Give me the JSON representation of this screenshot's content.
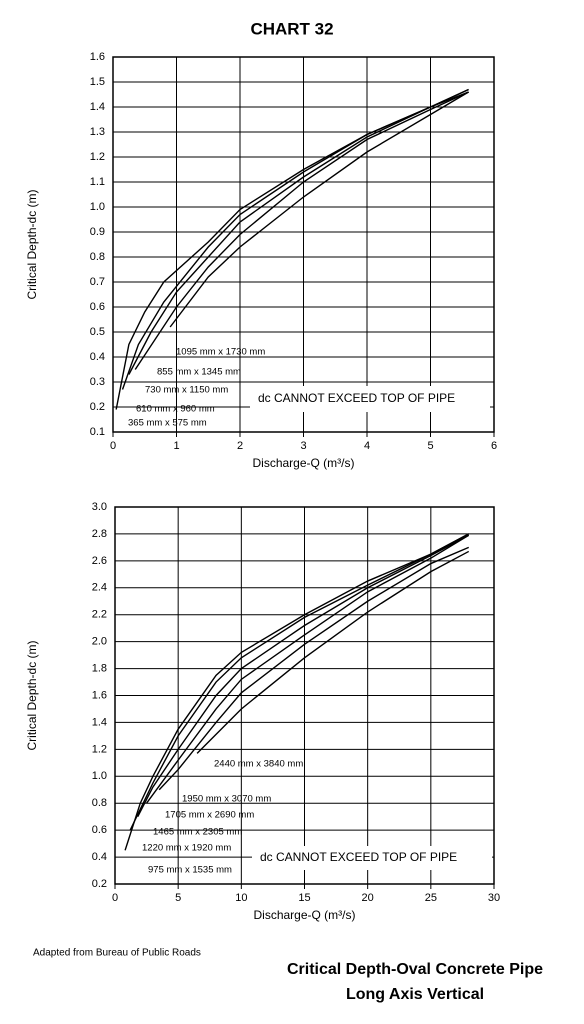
{
  "title": "CHART 32",
  "chart_data": [
    {
      "type": "line",
      "xlabel": "Discharge-Q (m³/s)",
      "ylabel": "Critical Depth-dc (m)",
      "xlim": [
        0,
        6
      ],
      "ylim": [
        0.1,
        1.6
      ],
      "xticks": [
        0,
        1,
        2,
        3,
        4,
        5,
        6
      ],
      "yticks": [
        0.1,
        0.2,
        0.3,
        0.4,
        0.5,
        0.6,
        0.7,
        0.8,
        0.9,
        {
          "value": 1,
          "label": "1.0"
        },
        1.1,
        1.2,
        1.3,
        1.4,
        1.5,
        1.6
      ],
      "grid": true,
      "annotation": "dc CANNOT EXCEED TOP OF PIPE",
      "series": [
        {
          "name": "365 mm x 575 mm",
          "color": "#000000",
          "x": [
            0.05,
            0.25,
            0.5,
            0.8,
            1.5,
            2,
            3,
            4,
            5,
            5.6
          ],
          "values": [
            0.19,
            0.45,
            0.58,
            0.7,
            0.86,
            0.99,
            1.15,
            1.29,
            1.4,
            1.47
          ]
        },
        {
          "name": "610 mm x 960 mm",
          "color": "#000000",
          "x": [
            0.15,
            0.4,
            0.8,
            1.5,
            2,
            3,
            4,
            5,
            5.6
          ],
          "values": [
            0.27,
            0.45,
            0.62,
            0.84,
            0.97,
            1.14,
            1.29,
            1.4,
            1.47
          ]
        },
        {
          "name": "730 mm x 1150 mm",
          "color": "#000000",
          "x": [
            0.25,
            0.6,
            1,
            1.5,
            2,
            3,
            4,
            5,
            5.6
          ],
          "values": [
            0.33,
            0.5,
            0.66,
            0.8,
            0.94,
            1.12,
            1.28,
            1.4,
            1.46
          ]
        },
        {
          "name": "855 mm x 1345 mm",
          "color": "#000000",
          "x": [
            0.35,
            1,
            1.5,
            2,
            3,
            4,
            5,
            5.6
          ],
          "values": [
            0.35,
            0.6,
            0.76,
            0.89,
            1.1,
            1.27,
            1.39,
            1.46
          ]
        },
        {
          "name": "1095 mm x 1730 mm",
          "color": "#000000",
          "x": [
            0.9,
            1.5,
            2,
            3,
            4,
            5,
            5.6
          ],
          "values": [
            0.52,
            0.72,
            0.84,
            1.04,
            1.22,
            1.37,
            1.46
          ]
        }
      ]
    },
    {
      "type": "line",
      "xlabel": "Discharge-Q (m³/s)",
      "ylabel": "Critical Depth-dc (m)",
      "xlim": [
        0,
        30
      ],
      "ylim": [
        0.2,
        3.0
      ],
      "xticks": [
        0,
        5,
        10,
        15,
        20,
        25,
        30
      ],
      "yticks": [
        0.2,
        0.4,
        0.6,
        0.8,
        {
          "value": 1,
          "label": "1.0"
        },
        1.2,
        1.4,
        1.6,
        1.8,
        {
          "value": 2,
          "label": "2.0"
        },
        2.2,
        2.4,
        2.6,
        2.8,
        {
          "value": 3,
          "label": "3.0"
        }
      ],
      "grid": true,
      "annotation": "dc CANNOT EXCEED TOP OF PIPE",
      "series": [
        {
          "name": "975 mm x 1535 mm",
          "color": "#000000",
          "x": [
            0.8,
            2,
            3,
            5,
            8,
            10,
            15,
            20,
            25,
            28
          ],
          "values": [
            0.45,
            0.8,
            1.0,
            1.35,
            1.75,
            1.92,
            2.2,
            2.45,
            2.65,
            2.8
          ]
        },
        {
          "name": "1220 mm x 1920 mm",
          "color": "#000000",
          "x": [
            1.2,
            3,
            5,
            8,
            10,
            15,
            20,
            25,
            28
          ],
          "values": [
            0.6,
            0.95,
            1.3,
            1.7,
            1.88,
            2.18,
            2.42,
            2.65,
            2.8
          ]
        },
        {
          "name": "1465 mm x 2305 mm",
          "color": "#000000",
          "x": [
            1.8,
            3,
            5,
            8,
            10,
            15,
            20,
            25,
            28
          ],
          "values": [
            0.7,
            0.92,
            1.2,
            1.6,
            1.8,
            2.12,
            2.4,
            2.64,
            2.79
          ]
        },
        {
          "name": "1705 mm x 2690 mm",
          "color": "#000000",
          "x": [
            2.5,
            5,
            8,
            10,
            15,
            20,
            25,
            28
          ],
          "values": [
            0.8,
            1.12,
            1.5,
            1.72,
            2.05,
            2.37,
            2.62,
            2.79
          ]
        },
        {
          "name": "1950 mm x 3070 mm",
          "color": "#000000",
          "x": [
            3.5,
            5,
            8,
            10,
            15,
            20,
            25,
            28
          ],
          "values": [
            0.9,
            1.05,
            1.4,
            1.62,
            1.98,
            2.3,
            2.58,
            2.7
          ]
        },
        {
          "name": "2440 mm x 3840 mm",
          "color": "#000000",
          "x": [
            6.5,
            10,
            15,
            20,
            25,
            28
          ],
          "values": [
            1.17,
            1.5,
            1.88,
            2.22,
            2.52,
            2.67
          ]
        }
      ]
    }
  ],
  "footer": {
    "source": "Adapted from Bureau of Public Roads",
    "caption": [
      "Critical Depth-Oval Concrete Pipe",
      "Long Axis Vertical"
    ]
  }
}
